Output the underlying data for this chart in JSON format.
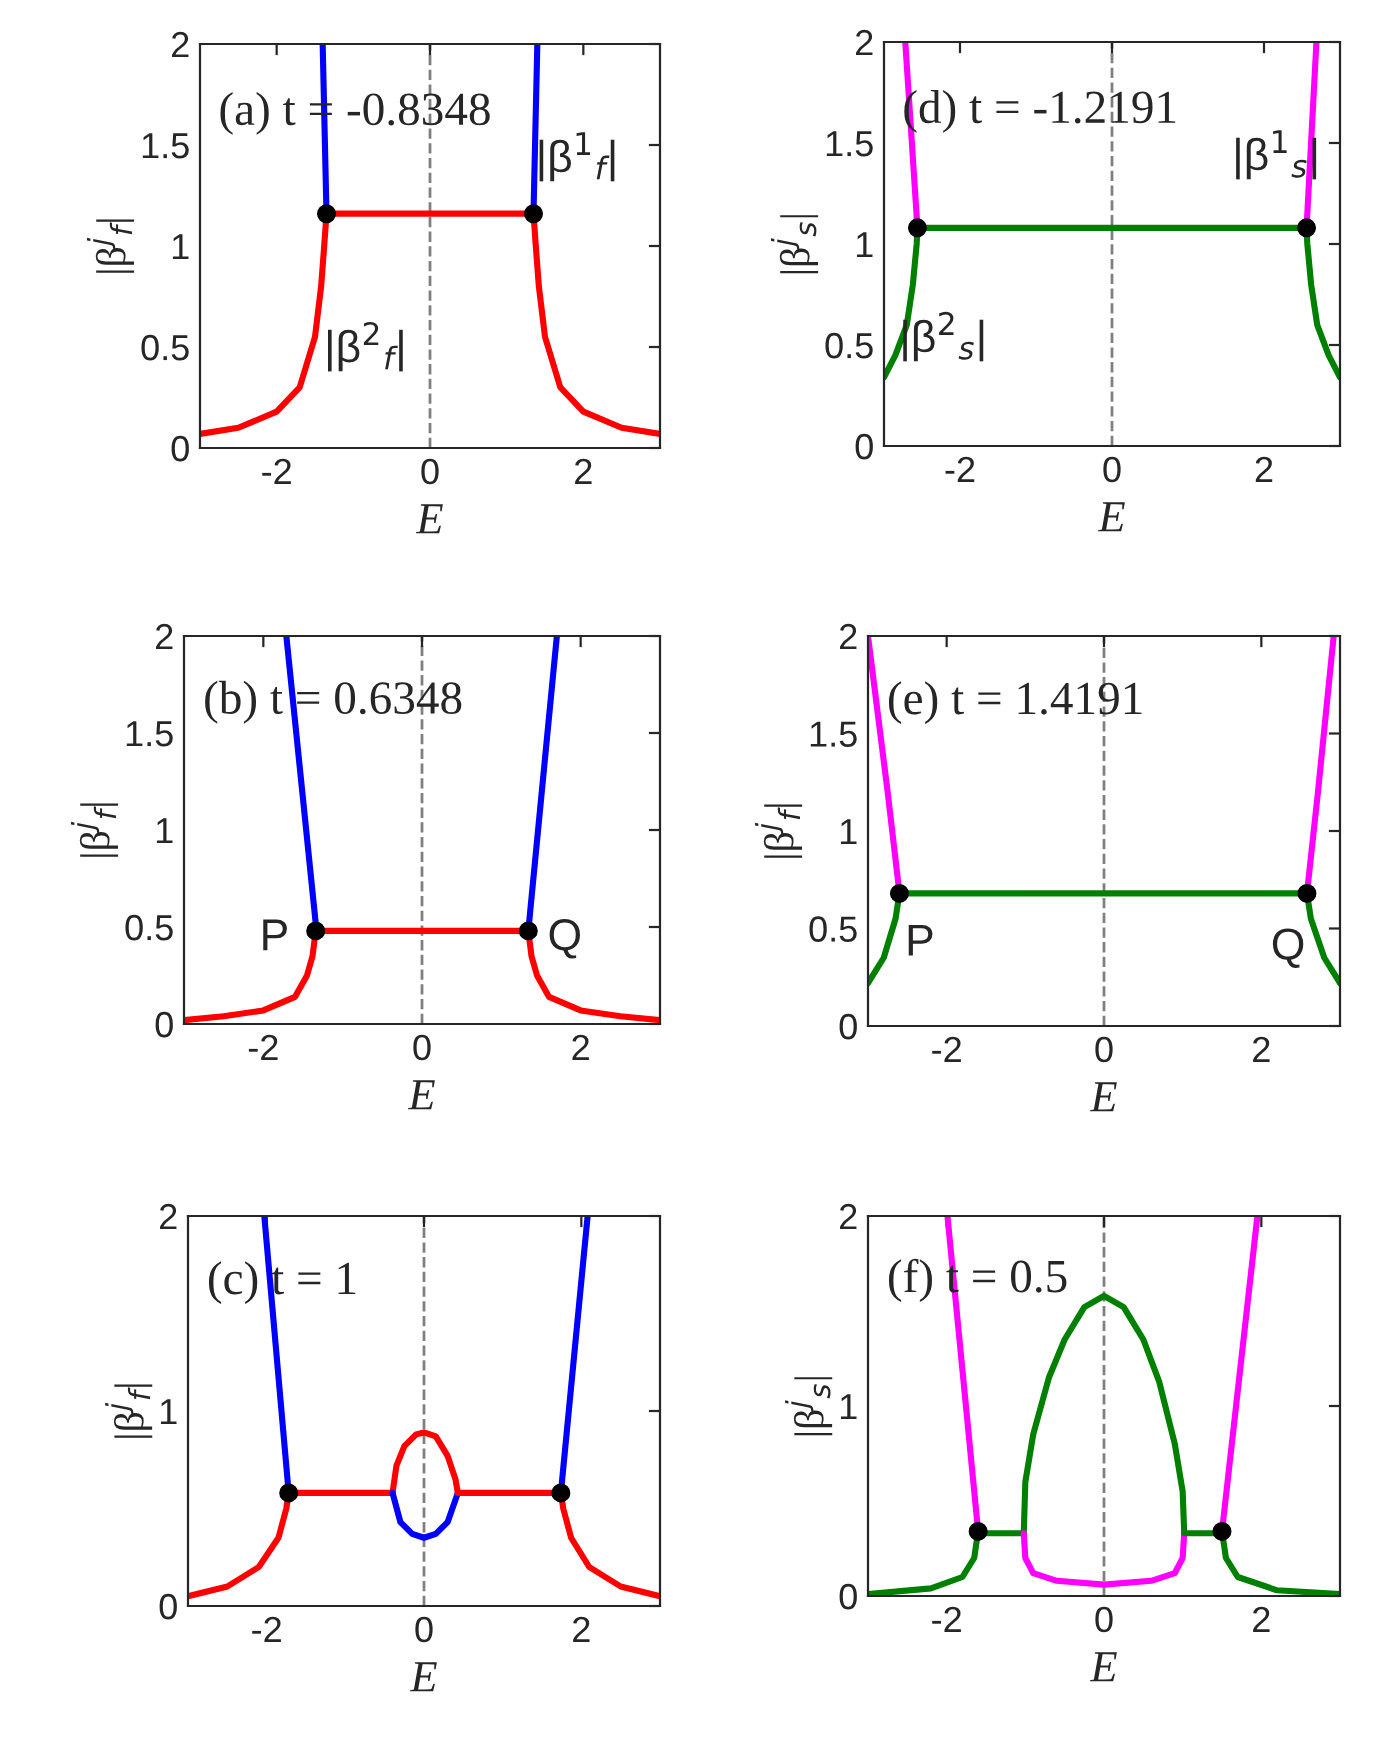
{
  "chart_data": [
    {
      "type": "line",
      "xlabel": "E",
      "ylabel": "|β$^{j}$$_{f}$|",
      "xlim": [
        -3,
        3
      ],
      "ylim": [
        0,
        2
      ],
      "xticks": [
        -2,
        0,
        2
      ],
      "yticks": [
        0,
        0.5,
        1,
        1.5,
        2
      ],
      "grid": false,
      "legend": false,
      "ref_lines": [
        {
          "axis": "x",
          "value": 0,
          "color": "#808080",
          "line_style": "dashed"
        }
      ],
      "annotations": [
        "(a)",
        "t = -0.8348",
        "|β$^{1}$$_{f}$|",
        "|β$^{2}$$_{f}$|"
      ],
      "series": [
        {
          "color": "#0000ff",
          "x": [
            -1.35,
            -1.4
          ],
          "values": [
            1.16,
            2
          ]
        },
        {
          "color": "#0000ff",
          "x": [
            1.35,
            1.4
          ],
          "values": [
            1.16,
            2
          ]
        },
        {
          "color": "#ff0000",
          "x": [
            -3,
            -2.5,
            -2,
            -1.7,
            -1.5,
            -1.42,
            -1.38,
            -1.35
          ],
          "values": [
            0.07,
            0.1,
            0.18,
            0.3,
            0.55,
            0.8,
            1.0,
            1.16
          ]
        },
        {
          "color": "#ff0000",
          "x": [
            -1.35,
            1.35
          ],
          "values": [
            1.16,
            1.16
          ]
        },
        {
          "color": "#ff0000",
          "x": [
            1.35,
            1.38,
            1.42,
            1.5,
            1.7,
            2,
            2.5,
            3
          ],
          "values": [
            1.16,
            1.0,
            0.8,
            0.55,
            0.3,
            0.18,
            0.1,
            0.07
          ]
        },
        {
          "type": "scatter",
          "color": "#000000",
          "marker": "circle",
          "x": [
            -1.35,
            1.35
          ],
          "values": [
            1.16,
            1.16
          ]
        }
      ]
    },
    {
      "type": "line",
      "xlabel": "E",
      "ylabel": "|β$^{j}$$_{s}$|",
      "xlim": [
        -3,
        3
      ],
      "ylim": [
        0,
        2
      ],
      "xticks": [
        -2,
        0,
        2
      ],
      "yticks": [
        0,
        0.5,
        1,
        1.5,
        2
      ],
      "grid": false,
      "legend": false,
      "ref_lines": [
        {
          "axis": "x",
          "value": 0,
          "color": "#808080",
          "line_style": "dashed"
        }
      ],
      "annotations": [
        "(d)",
        "t = -1.2191",
        "|β$^{1}$$_{s}$|",
        "|β$^{2}$$_{s}$|"
      ],
      "series": [
        {
          "color": "#ff00ff",
          "x": [
            -2.56,
            -2.72
          ],
          "values": [
            1.08,
            2
          ]
        },
        {
          "color": "#ff00ff",
          "x": [
            2.56,
            2.69
          ],
          "values": [
            1.08,
            2
          ]
        },
        {
          "color": "#008000",
          "x": [
            -3,
            -2.85,
            -2.7,
            -2.62,
            -2.57,
            -2.56
          ],
          "values": [
            0.34,
            0.45,
            0.6,
            0.8,
            1.0,
            1.08
          ]
        },
        {
          "color": "#008000",
          "x": [
            -2.56,
            2.56
          ],
          "values": [
            1.08,
            1.08
          ]
        },
        {
          "color": "#008000",
          "x": [
            2.56,
            2.57,
            2.62,
            2.7,
            2.85,
            3
          ],
          "values": [
            1.08,
            1.0,
            0.8,
            0.6,
            0.45,
            0.34
          ]
        },
        {
          "type": "scatter",
          "color": "#000000",
          "marker": "circle",
          "x": [
            -2.56,
            2.56
          ],
          "values": [
            1.08,
            1.08
          ]
        }
      ]
    },
    {
      "type": "line",
      "xlabel": "E",
      "ylabel": "|β$^{j}$$_{f}$|",
      "xlim": [
        -3,
        3
      ],
      "ylim": [
        0,
        2
      ],
      "xticks": [
        -2,
        0,
        2
      ],
      "yticks": [
        0,
        0.5,
        1,
        1.5,
        2
      ],
      "grid": false,
      "legend": false,
      "ref_lines": [
        {
          "axis": "x",
          "value": 0,
          "color": "#808080",
          "line_style": "dashed"
        }
      ],
      "annotations": [
        "(b)",
        "t = 0.6348",
        "P",
        "Q"
      ],
      "series": [
        {
          "color": "#0000ff",
          "x": [
            -1.33,
            -1.71
          ],
          "values": [
            0.48,
            2
          ]
        },
        {
          "color": "#0000ff",
          "x": [
            1.34,
            1.7
          ],
          "values": [
            0.48,
            2
          ]
        },
        {
          "color": "#ff0000",
          "x": [
            -3,
            -2.5,
            -2,
            -1.6,
            -1.45,
            -1.38,
            -1.34
          ],
          "values": [
            0.02,
            0.04,
            0.07,
            0.14,
            0.25,
            0.35,
            0.48
          ]
        },
        {
          "color": "#ff0000",
          "x": [
            -1.34,
            1.34
          ],
          "values": [
            0.48,
            0.48
          ]
        },
        {
          "color": "#ff0000",
          "x": [
            1.34,
            1.38,
            1.45,
            1.6,
            2,
            2.5,
            3
          ],
          "values": [
            0.48,
            0.35,
            0.25,
            0.14,
            0.07,
            0.04,
            0.02
          ]
        },
        {
          "type": "scatter",
          "color": "#000000",
          "marker": "circle",
          "x": [
            -1.34,
            1.34
          ],
          "values": [
            0.48,
            0.48
          ]
        }
      ]
    },
    {
      "type": "line",
      "xlabel": "E",
      "ylabel": "|β$^{j}$$_{f}$|",
      "xlim": [
        -3,
        3
      ],
      "ylim": [
        0,
        2
      ],
      "xticks": [
        -2,
        0,
        2
      ],
      "yticks": [
        0,
        0.5,
        1,
        1.5,
        2
      ],
      "grid": false,
      "legend": false,
      "ref_lines": [
        {
          "axis": "x",
          "value": 0,
          "color": "#808080",
          "line_style": "dashed"
        }
      ],
      "annotations": [
        "(e)",
        "t = 1.4191",
        "P",
        "Q"
      ],
      "series": [
        {
          "color": "#ff00ff",
          "x": [
            -2.6,
            -2.75,
            -3
          ],
          "values": [
            0.68,
            1.2,
            2
          ]
        },
        {
          "color": "#ff00ff",
          "x": [
            2.58,
            2.72,
            2.92
          ],
          "values": [
            0.68,
            1.2,
            2
          ]
        },
        {
          "color": "#008000",
          "x": [
            -3,
            -2.8,
            -2.65,
            -2.6
          ],
          "values": [
            0.22,
            0.35,
            0.55,
            0.68
          ]
        },
        {
          "color": "#008000",
          "x": [
            -2.6,
            2.58
          ],
          "values": [
            0.68,
            0.68
          ]
        },
        {
          "color": "#008000",
          "x": [
            2.58,
            2.63,
            2.8,
            3
          ],
          "values": [
            0.68,
            0.55,
            0.35,
            0.22
          ]
        },
        {
          "type": "scatter",
          "color": "#000000",
          "marker": "circle",
          "x": [
            -2.6,
            2.58
          ],
          "values": [
            0.68,
            0.68
          ]
        }
      ]
    },
    {
      "type": "line",
      "xlabel": "E",
      "ylabel": "|β$^{j}$$_{f}$|",
      "xlim": [
        -3,
        3
      ],
      "ylim": [
        0,
        2
      ],
      "xticks": [
        -2,
        0,
        2
      ],
      "yticks": [
        0,
        1,
        2
      ],
      "grid": false,
      "legend": false,
      "ref_lines": [
        {
          "axis": "x",
          "value": 0,
          "color": "#808080",
          "line_style": "dashed"
        }
      ],
      "annotations": [
        "(c)",
        "t = 1"
      ],
      "series": [
        {
          "color": "#0000ff",
          "x": [
            -1.72,
            -2.03
          ],
          "values": [
            0.58,
            2
          ]
        },
        {
          "color": "#0000ff",
          "x": [
            1.74,
            2.08
          ],
          "values": [
            0.58,
            2
          ]
        },
        {
          "color": "#ff0000",
          "x": [
            -3,
            -2.5,
            -2.1,
            -1.85,
            -1.75,
            -1.72
          ],
          "values": [
            0.05,
            0.1,
            0.2,
            0.35,
            0.5,
            0.58
          ]
        },
        {
          "color": "#ff0000",
          "x": [
            -1.72,
            -0.4
          ],
          "values": [
            0.58,
            0.58
          ]
        },
        {
          "color": "#ff0000",
          "x": [
            -0.4,
            -0.35,
            -0.25,
            -0.1,
            0,
            0.15,
            0.3,
            0.4,
            0.43
          ],
          "values": [
            0.58,
            0.72,
            0.82,
            0.88,
            0.89,
            0.87,
            0.77,
            0.65,
            0.58
          ]
        },
        {
          "color": "#0000ff",
          "x": [
            -0.4,
            -0.3,
            -0.15,
            0,
            0.15,
            0.3,
            0.43
          ],
          "values": [
            0.58,
            0.43,
            0.37,
            0.35,
            0.37,
            0.43,
            0.58
          ]
        },
        {
          "color": "#ff0000",
          "x": [
            0.43,
            1.74
          ],
          "values": [
            0.58,
            0.58
          ]
        },
        {
          "color": "#ff0000",
          "x": [
            1.74,
            1.77,
            1.87,
            2.1,
            2.5,
            3
          ],
          "values": [
            0.58,
            0.5,
            0.35,
            0.2,
            0.1,
            0.05
          ]
        },
        {
          "type": "scatter",
          "color": "#000000",
          "marker": "circle",
          "x": [
            -1.72,
            1.74
          ],
          "values": [
            0.58,
            0.58
          ]
        }
      ]
    },
    {
      "type": "line",
      "xlabel": "E",
      "ylabel": "|β$^{j}$$_{s}$|",
      "xlim": [
        -3,
        3
      ],
      "ylim": [
        0,
        2
      ],
      "xticks": [
        -2,
        0,
        2
      ],
      "yticks": [
        0,
        1,
        2
      ],
      "grid": false,
      "legend": false,
      "ref_lines": [
        {
          "axis": "x",
          "value": 0,
          "color": "#808080",
          "line_style": "dashed"
        }
      ],
      "annotations": [
        "(f)",
        "t = 0.5"
      ],
      "series": [
        {
          "color": "#ff00ff",
          "x": [
            -1.6,
            -1.99
          ],
          "values": [
            0.34,
            2
          ]
        },
        {
          "color": "#ff00ff",
          "x": [
            1.5,
            1.95
          ],
          "values": [
            0.34,
            2
          ]
        },
        {
          "color": "#008000",
          "x": [
            -3,
            -2.2,
            -1.8,
            -1.65,
            -1.6
          ],
          "values": [
            0.01,
            0.04,
            0.1,
            0.2,
            0.34
          ]
        },
        {
          "color": "#008000",
          "x": [
            -1.6,
            -1.02
          ],
          "values": [
            0.33,
            0.33
          ]
        },
        {
          "color": "#008000",
          "x": [
            -1.02,
            -1.0,
            -0.9,
            -0.7,
            -0.5,
            -0.25,
            0,
            0.25,
            0.5,
            0.7,
            0.9,
            1.0,
            1.02
          ],
          "values": [
            0.33,
            0.6,
            0.85,
            1.15,
            1.35,
            1.52,
            1.58,
            1.52,
            1.35,
            1.13,
            0.8,
            0.55,
            0.33
          ]
        },
        {
          "color": "#ff00ff",
          "x": [
            -1.02,
            -1.0,
            -0.9,
            -0.6,
            0,
            0.6,
            0.9,
            1.0,
            1.02
          ],
          "values": [
            0.33,
            0.2,
            0.12,
            0.08,
            0.06,
            0.08,
            0.12,
            0.2,
            0.33
          ]
        },
        {
          "color": "#008000",
          "x": [
            1.02,
            1.5
          ],
          "values": [
            0.33,
            0.33
          ]
        },
        {
          "color": "#008000",
          "x": [
            1.5,
            1.55,
            1.7,
            2.2,
            3
          ],
          "values": [
            0.34,
            0.2,
            0.1,
            0.03,
            0.01
          ]
        },
        {
          "type": "scatter",
          "color": "#000000",
          "marker": "circle",
          "x": [
            -1.6,
            1.5
          ],
          "values": [
            0.34,
            0.34
          ]
        }
      ]
    }
  ]
}
